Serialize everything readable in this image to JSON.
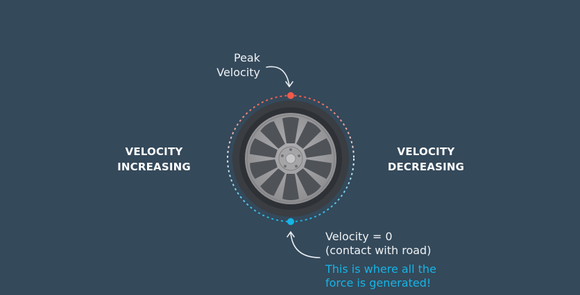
{
  "peak_label": [
    "Peak",
    "Velocity"
  ],
  "left_label": [
    "VELOCITY",
    "INCREASING"
  ],
  "right_label": [
    "VELOCITY",
    "DECREASING"
  ],
  "bottom_label": [
    "Velocity = 0",
    "(contact with road)"
  ],
  "force_note": [
    "This is where all the",
    "force is generated!"
  ],
  "colors": {
    "background": "#34495a",
    "top_marker": "#f05a4a",
    "bottom_marker": "#17b4e6",
    "tire": "#3c3f44",
    "rim": "#9a9a9c"
  }
}
